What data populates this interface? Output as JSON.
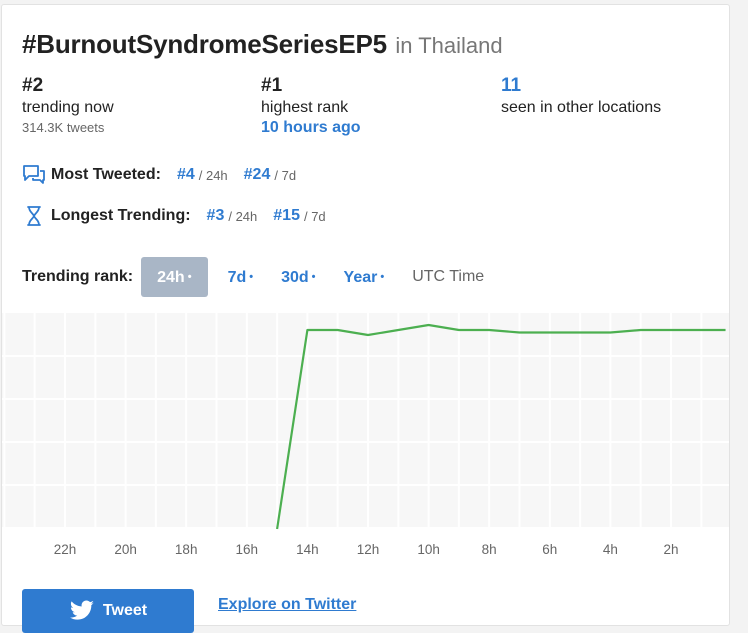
{
  "header": {
    "hashtag": "#BurnoutSyndromeSeriesEP5",
    "location_text": "in Thailand"
  },
  "stats": [
    {
      "value": "#2",
      "label": "trending now",
      "sub": "314.3K tweets"
    },
    {
      "value": "#1",
      "label": "highest rank",
      "sub": "10 hours ago"
    },
    {
      "value": "11",
      "label": "seen in other locations",
      "sub": ""
    }
  ],
  "most_tweeted": {
    "icon": "chat-bubbles-icon",
    "label": "Most Tweeted:",
    "ranks": [
      {
        "rank": "#4",
        "period": "/ 24h"
      },
      {
        "rank": "#24",
        "period": "/ 7d"
      }
    ]
  },
  "longest_trending": {
    "icon": "hourglass-icon",
    "label": "Longest Trending:",
    "ranks": [
      {
        "rank": "#3",
        "period": "/ 24h"
      },
      {
        "rank": "#15",
        "period": "/ 7d"
      }
    ]
  },
  "range_selector": {
    "label": "Trending rank:",
    "options": [
      {
        "label": "24h",
        "active": true
      },
      {
        "label": "7d",
        "active": false
      },
      {
        "label": "30d",
        "active": false
      },
      {
        "label": "Year",
        "active": false
      }
    ],
    "timezone": "UTC Time"
  },
  "chart_data": {
    "type": "line",
    "title": "",
    "xlabel": "",
    "ylabel": "",
    "x_axis_ticks": [
      "22h",
      "20h",
      "18h",
      "16h",
      "14h",
      "12h",
      "10h",
      "8h",
      "6h",
      "4h",
      "2h"
    ],
    "hours_ago_range": [
      24,
      0
    ],
    "y_direction": "rank, lower is better, shown at top",
    "grid": true,
    "series": [
      {
        "color": "#4caf50",
        "points": [
          {
            "hours_ago": 15.0,
            "rank": "off-chart"
          },
          {
            "hours_ago": 14.0,
            "rank": 1.2
          },
          {
            "hours_ago": 13.0,
            "rank": 1.2
          },
          {
            "hours_ago": 12.0,
            "rank": 1.3
          },
          {
            "hours_ago": 11.0,
            "rank": 1.2
          },
          {
            "hours_ago": 10.0,
            "rank": 1.1
          },
          {
            "hours_ago": 9.0,
            "rank": 1.2
          },
          {
            "hours_ago": 8.0,
            "rank": 1.2
          },
          {
            "hours_ago": 7.0,
            "rank": 1.25
          },
          {
            "hours_ago": 6.0,
            "rank": 1.25
          },
          {
            "hours_ago": 5.0,
            "rank": 1.25
          },
          {
            "hours_ago": 4.0,
            "rank": 1.25
          },
          {
            "hours_ago": 3.0,
            "rank": 1.2
          },
          {
            "hours_ago": 2.0,
            "rank": 1.2
          },
          {
            "hours_ago": 1.0,
            "rank": 1.2
          },
          {
            "hours_ago": 0.2,
            "rank": 1.2
          }
        ]
      }
    ]
  },
  "actions": {
    "tweet_label": "Tweet",
    "explore_label": "Explore on Twitter"
  },
  "colors": {
    "accent": "#2f7bd0",
    "line": "#4caf50",
    "grid": "#f0f0f0",
    "active_range_bg": "#a9b6c6"
  }
}
